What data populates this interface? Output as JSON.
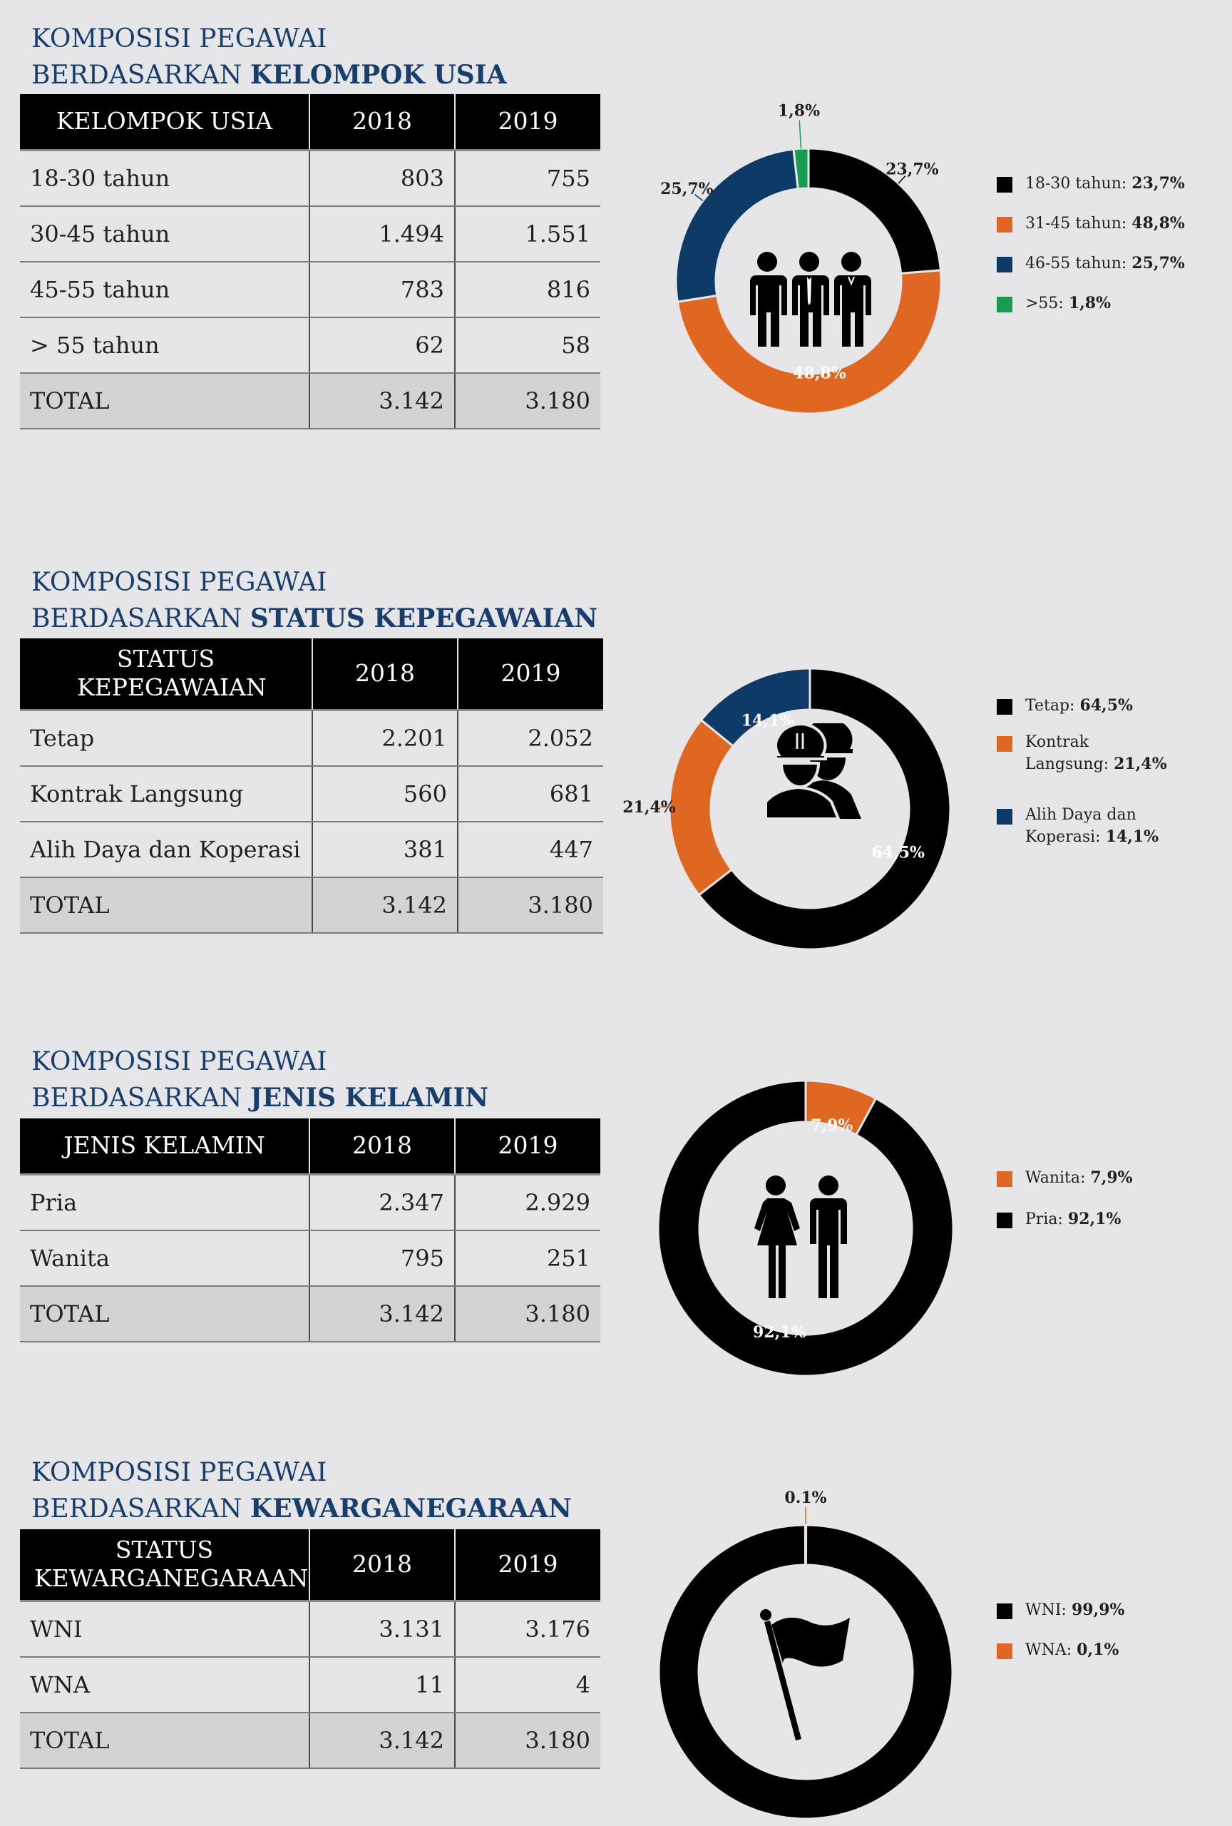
{
  "colors": {
    "black": "#000000",
    "orange": "#e06722",
    "navy": "#0e3a68",
    "green": "#169c4f",
    "title_blue": "#173e6c"
  },
  "sections": [
    {
      "title_line1": "KOMPOSISI PEGAWAI",
      "title_prefix": "BERDASARKAN",
      "title_bold": "KELOMPOK USIA",
      "header": [
        "KELOMPOK USIA",
        "2018",
        "2019"
      ],
      "rows": [
        [
          "18-30 tahun",
          "803",
          "755"
        ],
        [
          "30-45 tahun",
          "1.494",
          "1.551"
        ],
        [
          "45-55 tahun",
          "783",
          "816"
        ],
        [
          "> 55 tahun",
          "62",
          "58"
        ]
      ],
      "total": [
        "TOTAL",
        "3.142",
        "3.180"
      ],
      "icon": "three-workers-icon",
      "legend": [
        {
          "label": "18-30 tahun:",
          "value": "23,7%",
          "color": "#000000"
        },
        {
          "label": "31-45 tahun:",
          "value": "48,8%",
          "color": "#e06722"
        },
        {
          "label": "46-55 tahun:",
          "value": "25,7%",
          "color": "#0e3a68"
        },
        {
          "label": ">55:",
          "value": "1,8%",
          "color": "#169c4f"
        }
      ]
    },
    {
      "title_line1": "KOMPOSISI PEGAWAI",
      "title_prefix": "BERDASARKAN",
      "title_bold": "STATUS KEPEGAWAIAN",
      "header": [
        "STATUS KEPEGAWAIAN",
        "2018",
        "2019"
      ],
      "rows": [
        [
          "Tetap",
          "2.201",
          "2.052"
        ],
        [
          "Kontrak Langsung",
          "560",
          "681"
        ],
        [
          "Alih Daya dan Koperasi",
          "381",
          "447"
        ]
      ],
      "total": [
        "TOTAL",
        "3.142",
        "3.180"
      ],
      "icon": "hardhat-workers-icon",
      "legend": [
        {
          "label": "Tetap:",
          "value": "64,5%",
          "color": "#000000"
        },
        {
          "label": "Kontrak Langsung:",
          "value": "21,4%",
          "color": "#e06722"
        },
        {
          "label": "Alih Daya dan Koperasi:",
          "value": "14,1%",
          "color": "#0e3a68"
        }
      ]
    },
    {
      "title_line1": "KOMPOSISI PEGAWAI",
      "title_prefix": "BERDASARKAN",
      "title_bold": "JENIS KELAMIN",
      "header": [
        "JENIS KELAMIN",
        "2018",
        "2019"
      ],
      "rows": [
        [
          "Pria",
          "2.347",
          "2.929"
        ],
        [
          "Wanita",
          "795",
          "251"
        ]
      ],
      "total": [
        "TOTAL",
        "3.142",
        "3.180"
      ],
      "icon": "female-male-icon",
      "legend": [
        {
          "label": "Wanita:",
          "value": "7,9%",
          "color": "#e06722"
        },
        {
          "label": "Pria:",
          "value": "92,1%",
          "color": "#000000"
        }
      ]
    },
    {
      "title_line1": "KOMPOSISI PEGAWAI",
      "title_prefix": "BERDASARKAN",
      "title_bold": "KEWARGANEGARAAN",
      "header": [
        "STATUS KEWARGANEGARAAN",
        "2018",
        "2019"
      ],
      "rows": [
        [
          "WNI",
          "3.131",
          "3.176"
        ],
        [
          "WNA",
          "11",
          "4"
        ]
      ],
      "total": [
        "TOTAL",
        "3.142",
        "3.180"
      ],
      "icon": "flag-icon",
      "legend": [
        {
          "label": "WNI:",
          "value": "99,9%",
          "color": "#000000"
        },
        {
          "label": "WNA:",
          "value": "0,1%",
          "color": "#e06722"
        }
      ]
    }
  ],
  "chart_data": [
    {
      "type": "pie",
      "title": "",
      "categories": [
        "18-30 tahun",
        "31-45 tahun",
        "46-55 tahun",
        ">55"
      ],
      "values": [
        23.7,
        48.8,
        25.7,
        1.8
      ],
      "labels": [
        "23,7%",
        "48,8%",
        "25,7%",
        "1,8%"
      ],
      "colors": [
        "#000000",
        "#e06722",
        "#0e3a68",
        "#169c4f"
      ]
    },
    {
      "type": "pie",
      "title": "",
      "categories": [
        "Tetap",
        "Kontrak Langsung",
        "Alih Daya dan Koperasi"
      ],
      "values": [
        64.5,
        21.4,
        14.1
      ],
      "labels": [
        "64,5%",
        "21,4%",
        "14,1%"
      ],
      "colors": [
        "#000000",
        "#e06722",
        "#0e3a68"
      ]
    },
    {
      "type": "pie",
      "title": "",
      "categories": [
        "Wanita",
        "Pria"
      ],
      "values": [
        7.9,
        92.1
      ],
      "labels": [
        "7,9%",
        "92,1%"
      ],
      "colors": [
        "#e06722",
        "#000000"
      ]
    },
    {
      "type": "pie",
      "title": "",
      "categories": [
        "WNA",
        "WNI"
      ],
      "values": [
        0.1,
        99.9
      ],
      "labels": [
        "0.1%",
        ""
      ],
      "colors": [
        "#e06722",
        "#000000"
      ]
    }
  ]
}
